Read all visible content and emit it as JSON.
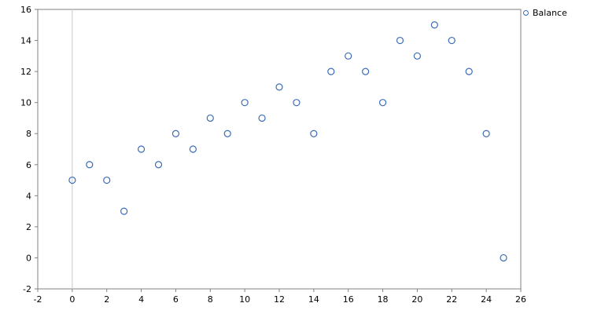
{
  "legend": {
    "label": "Balance"
  },
  "colors": {
    "point": "#3b6cb7",
    "grid": "#c8c8c8",
    "border": "#808080",
    "text": "#000000",
    "background": "#ffffff"
  },
  "chart_data": {
    "type": "scatter",
    "title": "",
    "xlabel": "",
    "ylabel": "",
    "xlim": [
      -2,
      26
    ],
    "ylim": [
      -2,
      16
    ],
    "xticks": [
      -2,
      0,
      2,
      4,
      6,
      8,
      10,
      12,
      14,
      16,
      18,
      20,
      22,
      24,
      26
    ],
    "yticks": [
      -2,
      0,
      2,
      4,
      6,
      8,
      10,
      12,
      14,
      16
    ],
    "gridlines_x": [
      0
    ],
    "legend_position": "top-right-outside",
    "series": [
      {
        "name": "Balance",
        "marker": "open-circle",
        "x": [
          0,
          1,
          2,
          3,
          4,
          5,
          6,
          7,
          8,
          9,
          10,
          11,
          12,
          13,
          14,
          15,
          16,
          17,
          18,
          19,
          20,
          21,
          22,
          23,
          24,
          25
        ],
        "y": [
          5,
          6,
          5,
          3,
          7,
          6,
          8,
          7,
          9,
          8,
          10,
          9,
          11,
          10,
          8,
          12,
          13,
          12,
          10,
          14,
          13,
          15,
          14,
          12,
          8,
          0
        ]
      }
    ]
  }
}
